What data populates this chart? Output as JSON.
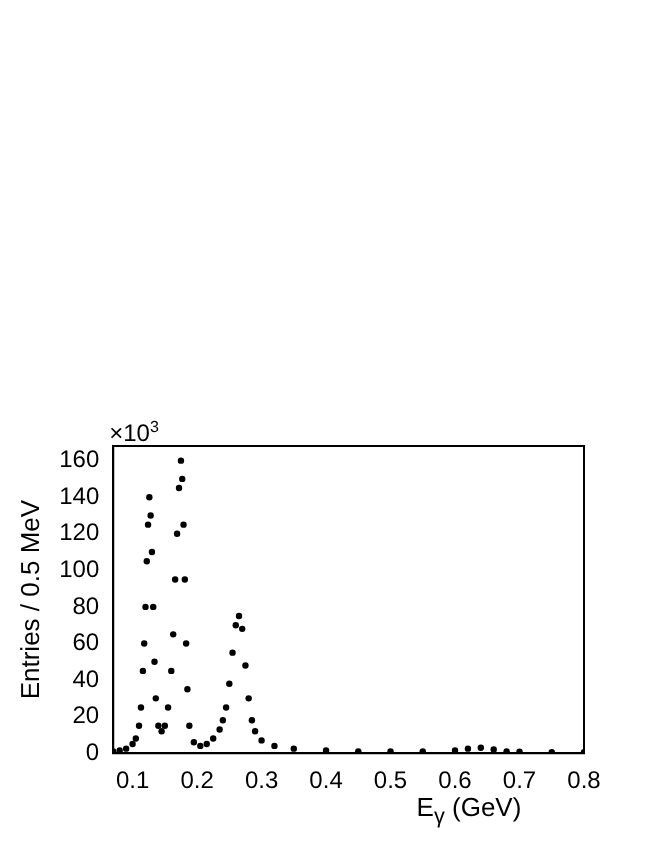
{
  "chart_data": {
    "type": "scatter",
    "xlabel": "E$_{γ}$ (GeV)",
    "ylabel": "Entries / 0.5 MeV",
    "annotations": [
      "×10$^{3}$"
    ],
    "xlim": [
      0.07,
      0.8
    ],
    "xticks": [
      0.1,
      0.2,
      0.3,
      0.4,
      0.5,
      0.6,
      0.7,
      0.8
    ],
    "ylim": [
      0,
      168
    ],
    "yticks": [
      0,
      20,
      40,
      60,
      80,
      100,
      120,
      140,
      160
    ],
    "grid": false,
    "legend": false,
    "marker": "circle",
    "series": [
      {
        "color": "#000000",
        "x": [
          0.07,
          0.08,
          0.09,
          0.1,
          0.105,
          0.11,
          0.113,
          0.116,
          0.118,
          0.12,
          0.122,
          0.124,
          0.126,
          0.128,
          0.13,
          0.132,
          0.134,
          0.136,
          0.14,
          0.145,
          0.15,
          0.155,
          0.16,
          0.163,
          0.166,
          0.169,
          0.172,
          0.175,
          0.177,
          0.179,
          0.181,
          0.183,
          0.185,
          0.188,
          0.195,
          0.205,
          0.215,
          0.225,
          0.235,
          0.24,
          0.245,
          0.25,
          0.255,
          0.26,
          0.265,
          0.27,
          0.275,
          0.28,
          0.285,
          0.29,
          0.3,
          0.32,
          0.35,
          0.4,
          0.45,
          0.5,
          0.55,
          0.6,
          0.62,
          0.64,
          0.66,
          0.68,
          0.7,
          0.75,
          0.8
        ],
        "values": [
          1,
          1.5,
          2.5,
          5,
          8,
          15,
          25,
          45,
          60,
          80,
          105,
          125,
          140,
          130,
          110,
          80,
          50,
          30,
          15,
          12,
          15,
          25,
          45,
          65,
          95,
          120,
          145,
          160,
          150,
          125,
          95,
          60,
          35,
          15,
          6,
          4,
          5,
          8,
          13,
          18,
          25,
          38,
          55,
          70,
          75,
          68,
          48,
          30,
          18,
          12,
          7,
          4,
          2.5,
          1.5,
          1,
          1,
          1,
          1.5,
          2.5,
          3,
          2,
          1,
          0.8,
          0.5,
          0.5
        ]
      }
    ]
  }
}
